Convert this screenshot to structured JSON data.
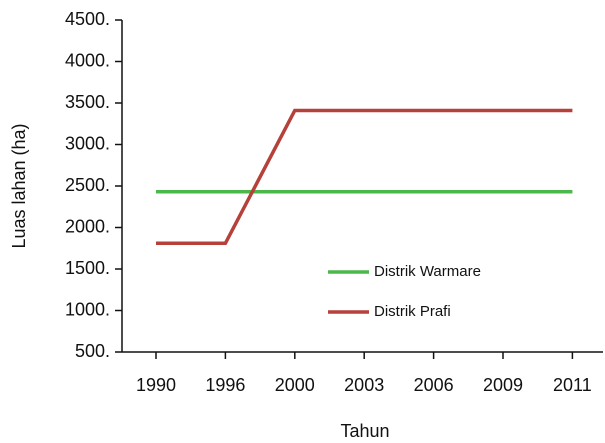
{
  "chart_data": {
    "type": "line",
    "x_label": "Tahun",
    "y_label": "Luas lahan (ha)",
    "categories": [
      "1990",
      "1996",
      "2000",
      "2003",
      "2006",
      "2009",
      "2011"
    ],
    "series": [
      {
        "name": "Distrik Warmare",
        "color": "#4cb84c",
        "values": [
          2430,
          2430,
          2430,
          2430,
          2430,
          2430,
          2430
        ]
      },
      {
        "name": "Distrik Prafi",
        "color": "#b5413a",
        "values": [
          1810,
          1810,
          3410,
          3410,
          3410,
          3410,
          3410
        ]
      }
    ],
    "ylim": [
      500,
      4500
    ],
    "yticks": [
      {
        "value": 500,
        "label": "500."
      },
      {
        "value": 1000,
        "label": "1000."
      },
      {
        "value": 1500,
        "label": "1500."
      },
      {
        "value": 2000,
        "label": "2000."
      },
      {
        "value": 2500,
        "label": "2500."
      },
      {
        "value": 3000,
        "label": "3000."
      },
      {
        "value": 3500,
        "label": "3500."
      },
      {
        "value": 4000,
        "label": "4000."
      },
      {
        "value": 4500,
        "label": "4500."
      }
    ],
    "grid": false
  }
}
